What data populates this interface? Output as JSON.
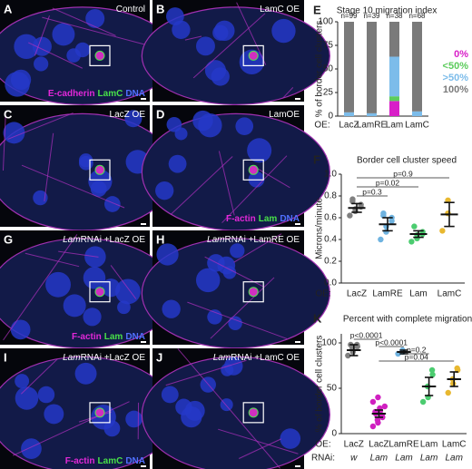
{
  "figure_panels": [
    {
      "letter": "A",
      "title": "Control",
      "legend": [
        {
          "text": "E-cadherin",
          "color": "#e228d8"
        },
        {
          "text": "LamC",
          "color": "#48e048"
        },
        {
          "text": "DNA",
          "color": "#5070ff"
        }
      ]
    },
    {
      "letter": "B",
      "title": "LamC OE"
    },
    {
      "letter": "C",
      "title": "LacZ OE"
    },
    {
      "letter": "D",
      "title": "LamOE",
      "legend": [
        {
          "text": "F-actin",
          "color": "#e228d8"
        },
        {
          "text": "Lam",
          "color": "#48e048"
        },
        {
          "text": "DNA",
          "color": "#5070ff"
        }
      ]
    },
    {
      "letter": "G",
      "title_italic": "Lam",
      "title": "RNAi +LacZ OE",
      "legend": [
        {
          "text": "F-actin",
          "color": "#e228d8"
        },
        {
          "text": "Lam",
          "color": "#48e048"
        },
        {
          "text": "DNA",
          "color": "#5070ff"
        }
      ]
    },
    {
      "letter": "H",
      "title_italic": "Lam",
      "title": "RNAi +LamRE OE"
    },
    {
      "letter": "I",
      "title_italic": "Lam",
      "title": "RNAi +LacZ OE",
      "legend": [
        {
          "text": "F-actin",
          "color": "#e228d8"
        },
        {
          "text": "LamC",
          "color": "#48e048"
        },
        {
          "text": "DNA",
          "color": "#5070ff"
        }
      ]
    },
    {
      "letter": "J",
      "title_italic": "Lam",
      "title": "RNAi +LamC OE"
    }
  ],
  "chart_data": [
    {
      "type": "stacked_bar",
      "letter": "E",
      "title": "Stage 10 migration index",
      "ylabel": "% of border cell clusters",
      "category_axis_label": "OE:",
      "categories": [
        "LacZ",
        "LamRE",
        "Lam",
        "LamC"
      ],
      "annotations": [
        "n=99",
        "n=39",
        "n=38",
        "n=68"
      ],
      "series": [
        {
          "name": "0%",
          "color": "#d81fc8",
          "values": [
            0,
            0,
            16,
            0
          ]
        },
        {
          "name": "<50%",
          "color": "#5ccc5c",
          "values": [
            0,
            0,
            5,
            0
          ]
        },
        {
          "name": ">50%",
          "color": "#7cbcea",
          "values": [
            4,
            3,
            42,
            5
          ]
        },
        {
          "name": "100%",
          "color": "#7a7a7a",
          "values": [
            96,
            97,
            37,
            95
          ]
        }
      ],
      "ylim": [
        0,
        100
      ],
      "yticks": [
        0,
        25,
        50,
        75,
        100
      ]
    },
    {
      "type": "dot_plot",
      "letter": "F",
      "title": "Border cell cluster speed",
      "ylabel": "Microns/minute",
      "category_axis_label": "OE:",
      "categories": [
        "LacZ",
        "LamRE",
        "Lam",
        "LamC"
      ],
      "point_colors": [
        "#808080",
        "#6fb3e0",
        "#4ccc70",
        "#e8b830"
      ],
      "means": [
        0.69,
        0.54,
        0.45,
        0.63
      ],
      "errors": [
        0.04,
        0.06,
        0.03,
        0.11
      ],
      "points": [
        [
          0.62,
          0.66,
          0.68,
          0.7,
          0.72,
          0.75,
          0.77
        ],
        [
          0.4,
          0.47,
          0.52,
          0.57,
          0.6,
          0.62,
          0.64
        ],
        [
          0.38,
          0.41,
          0.44,
          0.45,
          0.47,
          0.52
        ],
        [
          0.48,
          0.64,
          0.76
        ]
      ],
      "comparisons": [
        "p=0.9",
        "p=0.02",
        "p=0.3"
      ],
      "ylim": [
        0,
        1
      ],
      "yticks": [
        {
          "value": 0,
          "label": "0.0"
        },
        0.2,
        0.4,
        0.6,
        0.8,
        {
          "value": 1,
          "label": "1.0"
        }
      ]
    },
    {
      "type": "dot_plot",
      "letter": "K",
      "title": "Percent with complete migration",
      "ylabel": "% of border cell clusters",
      "category_axis_label": "OE:",
      "category2_axis_label": "RNAi:",
      "categories": [
        "LacZ",
        "LacZ",
        "LamRE",
        "Lam",
        "LamC"
      ],
      "categories2": [
        "w",
        "Lam",
        "Lam",
        "Lam",
        "Lam"
      ],
      "point_colors": [
        "#808080",
        "#d020c0",
        "#6fb3e0",
        "#4ccc70",
        "#e8b830"
      ],
      "means": [
        92,
        22,
        90,
        52,
        60
      ],
      "errors": [
        6,
        4,
        2,
        10,
        8
      ],
      "points": [
        [
          86,
          90,
          94,
          96,
          98,
          98
        ],
        [
          8,
          12,
          15,
          18,
          20,
          22,
          24,
          25,
          28,
          30,
          35,
          40
        ],
        [
          88,
          90,
          92
        ],
        [
          35,
          40,
          52,
          65,
          70
        ],
        [
          45,
          55,
          60,
          70,
          72
        ]
      ],
      "comparisons": [
        "p<0.0001",
        "p<0.0001",
        "p=0.2",
        "p=0.04"
      ],
      "ylim": [
        0,
        110
      ],
      "yticks": [
        0,
        50,
        100
      ]
    }
  ]
}
